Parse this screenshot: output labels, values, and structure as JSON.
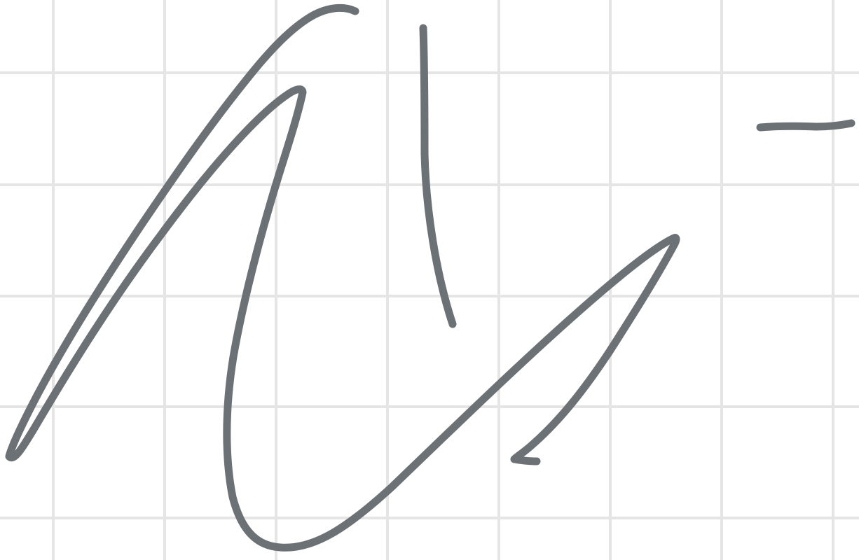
{
  "canvas": {
    "background_color": "#ffffff",
    "grid_color": "#e5e5e5",
    "ink_color": "#6b7175",
    "description_tag": "signature-drawing"
  },
  "strokes": [
    {
      "name": "stroke-long-loop"
    },
    {
      "name": "stroke-vertical"
    },
    {
      "name": "stroke-hook"
    },
    {
      "name": "stroke-dash"
    }
  ]
}
